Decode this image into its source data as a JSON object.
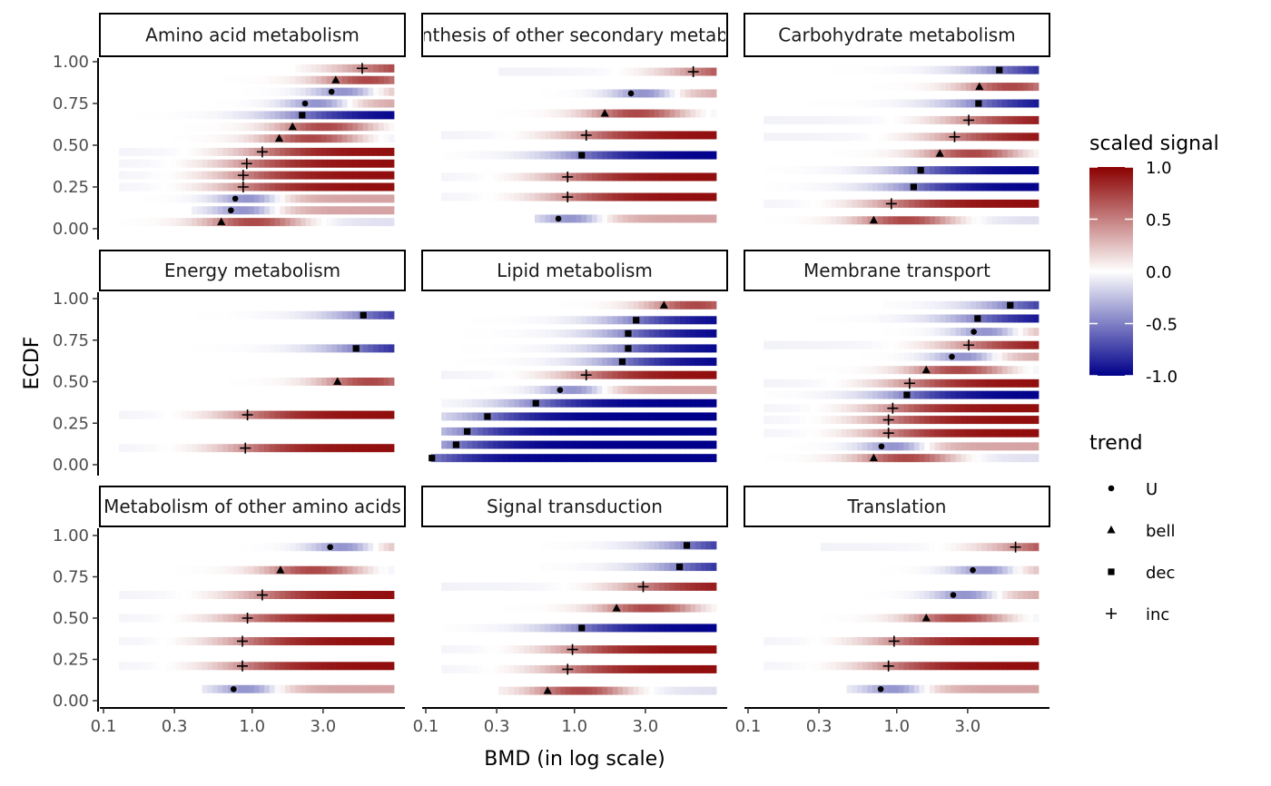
{
  "chart_data": {
    "type": "heatmap",
    "x_label": "BMD (in log scale)",
    "y_label": "ECDF",
    "x_scale": "log10",
    "x_range": [
      0.1,
      9.0
    ],
    "y_range": [
      0,
      1
    ],
    "x_ticks": [
      0.1,
      0.3,
      1.0,
      3.0
    ],
    "x_tick_labels": [
      "0.1",
      "0.3",
      "1.0",
      "3.0"
    ],
    "y_ticks": [
      0,
      0.25,
      0.5,
      0.75,
      1.0
    ],
    "y_tick_labels": [
      "0.00",
      "0.25",
      "0.50",
      "0.75",
      "1.00"
    ],
    "legend_signal": {
      "title": "scaled signal",
      "colors": [
        "#00008B",
        "#ffffff",
        "#8B0000"
      ],
      "ticks": [
        1.0,
        0.5,
        0.0,
        -0.5,
        -1.0
      ],
      "tick_labels": [
        "1.0",
        "0.5",
        "0.0",
        "-0.5",
        "-1.0"
      ]
    },
    "legend_trend": {
      "title": "trend",
      "items": [
        {
          "label": "U",
          "shape": "dot"
        },
        {
          "label": "bell",
          "shape": "triangle"
        },
        {
          "label": "dec",
          "shape": "square"
        },
        {
          "label": "inc",
          "shape": "plus"
        }
      ]
    },
    "panels": [
      {
        "title": "Amino acid metabolism",
        "rows": [
          {
            "y": 0.04,
            "bmd": 0.62,
            "trend": "bell",
            "start": 0.13
          },
          {
            "y": 0.11,
            "bmd": 0.72,
            "trend": "U",
            "start": 0.4
          },
          {
            "y": 0.18,
            "bmd": 0.77,
            "trend": "U",
            "start": 0.13
          },
          {
            "y": 0.25,
            "bmd": 0.87,
            "trend": "inc",
            "start": 0.13
          },
          {
            "y": 0.32,
            "bmd": 0.87,
            "trend": "inc",
            "start": 0.13
          },
          {
            "y": 0.39,
            "bmd": 0.92,
            "trend": "inc",
            "start": 0.13
          },
          {
            "y": 0.46,
            "bmd": 1.17,
            "trend": "inc",
            "start": 0.13
          },
          {
            "y": 0.54,
            "bmd": 1.52,
            "trend": "bell",
            "start": 0.25
          },
          {
            "y": 0.61,
            "bmd": 1.87,
            "trend": "bell",
            "start": 0.13
          },
          {
            "y": 0.68,
            "bmd": 2.17,
            "trend": "dec",
            "start": 0.13
          },
          {
            "y": 0.75,
            "bmd": 2.27,
            "trend": "U",
            "start": 0.2
          },
          {
            "y": 0.82,
            "bmd": 3.42,
            "trend": "U",
            "start": 0.13
          },
          {
            "y": 0.89,
            "bmd": 3.65,
            "trend": "bell",
            "start": 0.13
          },
          {
            "y": 0.96,
            "bmd": 5.5,
            "trend": "inc",
            "start": 2.0
          }
        ]
      },
      {
        "title": "Biosynthesis of other secondary metabolites",
        "rows": [
          {
            "y": 0.06,
            "bmd": 0.78,
            "trend": "U",
            "start": 0.55
          },
          {
            "y": 0.19,
            "bmd": 0.9,
            "trend": "inc",
            "start": 0.13
          },
          {
            "y": 0.31,
            "bmd": 0.9,
            "trend": "inc",
            "start": 0.13
          },
          {
            "y": 0.44,
            "bmd": 1.12,
            "trend": "dec",
            "start": 0.13
          },
          {
            "y": 0.56,
            "bmd": 1.2,
            "trend": "inc",
            "start": 0.13
          },
          {
            "y": 0.69,
            "bmd": 1.6,
            "trend": "bell",
            "start": 0.3
          },
          {
            "y": 0.81,
            "bmd": 2.4,
            "trend": "U",
            "start": 0.13
          },
          {
            "y": 0.94,
            "bmd": 6.3,
            "trend": "inc",
            "start": 0.3
          }
        ]
      },
      {
        "title": "Carbohydrate metabolism",
        "rows": [
          {
            "y": 0.05,
            "bmd": 0.7,
            "trend": "bell",
            "start": 0.13
          },
          {
            "y": 0.15,
            "bmd": 0.92,
            "trend": "inc",
            "start": 0.13
          },
          {
            "y": 0.25,
            "bmd": 1.3,
            "trend": "dec",
            "start": 0.13
          },
          {
            "y": 0.35,
            "bmd": 1.45,
            "trend": "dec",
            "start": 0.13
          },
          {
            "y": 0.45,
            "bmd": 1.95,
            "trend": "bell",
            "start": 0.13
          },
          {
            "y": 0.55,
            "bmd": 2.45,
            "trend": "inc",
            "start": 0.13
          },
          {
            "y": 0.65,
            "bmd": 3.05,
            "trend": "inc",
            "start": 0.13
          },
          {
            "y": 0.75,
            "bmd": 3.55,
            "trend": "dec",
            "start": 0.13
          },
          {
            "y": 0.85,
            "bmd": 3.6,
            "trend": "bell",
            "start": 0.13
          },
          {
            "y": 0.95,
            "bmd": 4.9,
            "trend": "dec",
            "start": 0.13
          }
        ]
      },
      {
        "title": "Energy metabolism",
        "rows": [
          {
            "y": 0.1,
            "bmd": 0.9,
            "trend": "inc",
            "start": 0.13
          },
          {
            "y": 0.3,
            "bmd": 0.93,
            "trend": "inc",
            "start": 0.13
          },
          {
            "y": 0.5,
            "bmd": 3.75,
            "trend": "bell",
            "start": 0.13
          },
          {
            "y": 0.7,
            "bmd": 5.0,
            "trend": "dec",
            "start": 0.3
          },
          {
            "y": 0.9,
            "bmd": 5.6,
            "trend": "dec",
            "start": 0.3
          }
        ]
      },
      {
        "title": "Lipid metabolism",
        "rows": [
          {
            "y": 0.04,
            "bmd": 0.11,
            "trend": "dec",
            "start": 0.11
          },
          {
            "y": 0.12,
            "bmd": 0.16,
            "trend": "dec",
            "start": 0.13
          },
          {
            "y": 0.2,
            "bmd": 0.19,
            "trend": "dec",
            "start": 0.13
          },
          {
            "y": 0.29,
            "bmd": 0.26,
            "trend": "dec",
            "start": 0.13
          },
          {
            "y": 0.37,
            "bmd": 0.55,
            "trend": "dec",
            "start": 0.13
          },
          {
            "y": 0.45,
            "bmd": 0.8,
            "trend": "U",
            "start": 0.13
          },
          {
            "y": 0.54,
            "bmd": 1.2,
            "trend": "inc",
            "start": 0.13
          },
          {
            "y": 0.62,
            "bmd": 2.1,
            "trend": "dec",
            "start": 0.13
          },
          {
            "y": 0.7,
            "bmd": 2.3,
            "trend": "dec",
            "start": 0.13
          },
          {
            "y": 0.79,
            "bmd": 2.3,
            "trend": "dec",
            "start": 0.13
          },
          {
            "y": 0.87,
            "bmd": 2.6,
            "trend": "dec",
            "start": 0.13
          },
          {
            "y": 0.96,
            "bmd": 4.0,
            "trend": "bell",
            "start": 0.13
          }
        ]
      },
      {
        "title": "Membrane transport",
        "rows": [
          {
            "y": 0.04,
            "bmd": 0.7,
            "trend": "bell",
            "start": 0.13
          },
          {
            "y": 0.11,
            "bmd": 0.79,
            "trend": "U",
            "start": 0.13
          },
          {
            "y": 0.19,
            "bmd": 0.88,
            "trend": "inc",
            "start": 0.13
          },
          {
            "y": 0.27,
            "bmd": 0.88,
            "trend": "inc",
            "start": 0.13
          },
          {
            "y": 0.34,
            "bmd": 0.94,
            "trend": "inc",
            "start": 0.13
          },
          {
            "y": 0.42,
            "bmd": 1.17,
            "trend": "dec",
            "start": 0.13
          },
          {
            "y": 0.49,
            "bmd": 1.22,
            "trend": "inc",
            "start": 0.13
          },
          {
            "y": 0.57,
            "bmd": 1.58,
            "trend": "bell",
            "start": 0.13
          },
          {
            "y": 0.65,
            "bmd": 2.35,
            "trend": "U",
            "start": 0.13
          },
          {
            "y": 0.72,
            "bmd": 3.05,
            "trend": "inc",
            "start": 0.13
          },
          {
            "y": 0.8,
            "bmd": 3.3,
            "trend": "U",
            "start": 0.13
          },
          {
            "y": 0.88,
            "bmd": 3.5,
            "trend": "dec",
            "start": 0.13
          },
          {
            "y": 0.96,
            "bmd": 5.8,
            "trend": "dec",
            "start": 0.8
          }
        ]
      },
      {
        "title": "Metabolism of other amino acids",
        "rows": [
          {
            "y": 0.07,
            "bmd": 0.75,
            "trend": "U",
            "start": 0.45
          },
          {
            "y": 0.21,
            "bmd": 0.86,
            "trend": "inc",
            "start": 0.13
          },
          {
            "y": 0.36,
            "bmd": 0.86,
            "trend": "inc",
            "start": 0.13
          },
          {
            "y": 0.5,
            "bmd": 0.93,
            "trend": "inc",
            "start": 0.13
          },
          {
            "y": 0.64,
            "bmd": 1.17,
            "trend": "inc",
            "start": 0.13
          },
          {
            "y": 0.79,
            "bmd": 1.55,
            "trend": "bell",
            "start": 0.3
          },
          {
            "y": 0.93,
            "bmd": 3.35,
            "trend": "U",
            "start": 0.13
          }
        ]
      },
      {
        "title": "Signal transduction",
        "rows": [
          {
            "y": 0.06,
            "bmd": 0.66,
            "trend": "bell",
            "start": 0.3
          },
          {
            "y": 0.19,
            "bmd": 0.9,
            "trend": "inc",
            "start": 0.13
          },
          {
            "y": 0.31,
            "bmd": 0.97,
            "trend": "inc",
            "start": 0.13
          },
          {
            "y": 0.44,
            "bmd": 1.12,
            "trend": "dec",
            "start": 0.13
          },
          {
            "y": 0.56,
            "bmd": 1.92,
            "trend": "bell",
            "start": 0.13
          },
          {
            "y": 0.69,
            "bmd": 2.9,
            "trend": "inc",
            "start": 0.13
          },
          {
            "y": 0.81,
            "bmd": 5.1,
            "trend": "dec",
            "start": 0.6
          },
          {
            "y": 0.94,
            "bmd": 5.7,
            "trend": "dec",
            "start": 0.6
          }
        ]
      },
      {
        "title": "Translation",
        "rows": [
          {
            "y": 0.07,
            "bmd": 0.78,
            "trend": "U",
            "start": 0.45
          },
          {
            "y": 0.21,
            "bmd": 0.88,
            "trend": "inc",
            "start": 0.13
          },
          {
            "y": 0.36,
            "bmd": 0.96,
            "trend": "inc",
            "start": 0.13
          },
          {
            "y": 0.5,
            "bmd": 1.58,
            "trend": "bell",
            "start": 0.3
          },
          {
            "y": 0.64,
            "bmd": 2.4,
            "trend": "U",
            "start": 0.13
          },
          {
            "y": 0.79,
            "bmd": 3.25,
            "trend": "U",
            "start": 0.13
          },
          {
            "y": 0.93,
            "bmd": 6.3,
            "trend": "inc",
            "start": 0.3
          }
        ]
      }
    ]
  }
}
